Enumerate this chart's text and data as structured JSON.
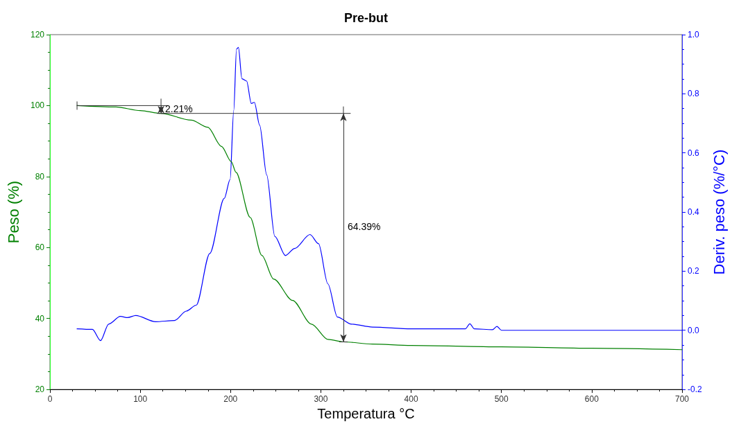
{
  "chart_data": {
    "type": "line",
    "title": "Pre-but",
    "xlabel": "Temperatura °C",
    "ylabel": "Peso (%)",
    "y2label": "Deriv. peso (%/°C)",
    "xlim": [
      0,
      700
    ],
    "xticks": [
      0,
      100,
      200,
      300,
      400,
      500,
      600,
      700
    ],
    "ylim": [
      20,
      120
    ],
    "yticks": [
      20,
      40,
      60,
      80,
      100,
      120
    ],
    "y2lim": [
      -0.2,
      1.0
    ],
    "y2ticks": [
      {
        "value": -0.2,
        "label": "-0.2"
      },
      {
        "value": 0,
        "label": "0.0"
      },
      {
        "value": 0.2,
        "label": "0.2"
      },
      {
        "value": 0.4,
        "label": "0.4"
      },
      {
        "value": 0.6,
        "label": "0.6"
      },
      {
        "value": 0.8,
        "label": "0.8"
      },
      {
        "value": 1.0,
        "label": "1.0"
      }
    ],
    "grid": false,
    "marker": "none",
    "line_style": "solid",
    "series": [
      {
        "color": "#008000",
        "x": [
          30,
          73,
          100,
          123,
          156.5,
          174.7,
          190,
          200.8,
          206,
          221.7,
          234.6,
          247.8,
          268.7,
          289.6,
          307.9,
          325,
          357,
          400,
          500,
          600,
          700
        ],
        "values": [
          100,
          99.6,
          98.6,
          97.8,
          95.9,
          93.9,
          88.5,
          84.2,
          81.2,
          68.5,
          57.8,
          51.1,
          45.1,
          38.4,
          34.1,
          33.4,
          32.8,
          32.4,
          32.0,
          31.6,
          31.2
        ]
      },
      {
        "color": "#0000ff",
        "axis": "y2",
        "x": [
          30,
          47,
          56,
          65,
          78,
          86,
          95,
          117,
          138,
          151,
          162,
          177,
          193,
          199.5,
          203.5,
          206.6,
          208.7,
          212.6,
          217.8,
          223,
          226.4,
          232.2,
          240,
          249,
          260.8,
          271,
          288,
          297.4,
          307.8,
          318.3,
          334,
          357,
          400,
          460,
          465,
          470,
          490,
          495,
          500,
          600,
          700
        ],
        "values": [
          0.005,
          0.003,
          -0.035,
          0.021,
          0.047,
          0.043,
          0.05,
          0.029,
          0.033,
          0.065,
          0.085,
          0.26,
          0.446,
          0.51,
          0.743,
          0.951,
          0.957,
          0.851,
          0.843,
          0.767,
          0.771,
          0.694,
          0.526,
          0.318,
          0.253,
          0.277,
          0.324,
          0.293,
          0.157,
          0.045,
          0.021,
          0.011,
          0.005,
          0.005,
          0.022,
          0.005,
          0.002,
          0.013,
          0.0,
          0.0,
          0.0
        ]
      }
    ],
    "ref_lines": [
      {
        "axis": "x",
        "value": 325,
        "color": "#333333"
      }
    ],
    "annotations": [
      {
        "text": "2.21%",
        "x": 123,
        "y": 97.8
      },
      "64.39%"
    ]
  }
}
